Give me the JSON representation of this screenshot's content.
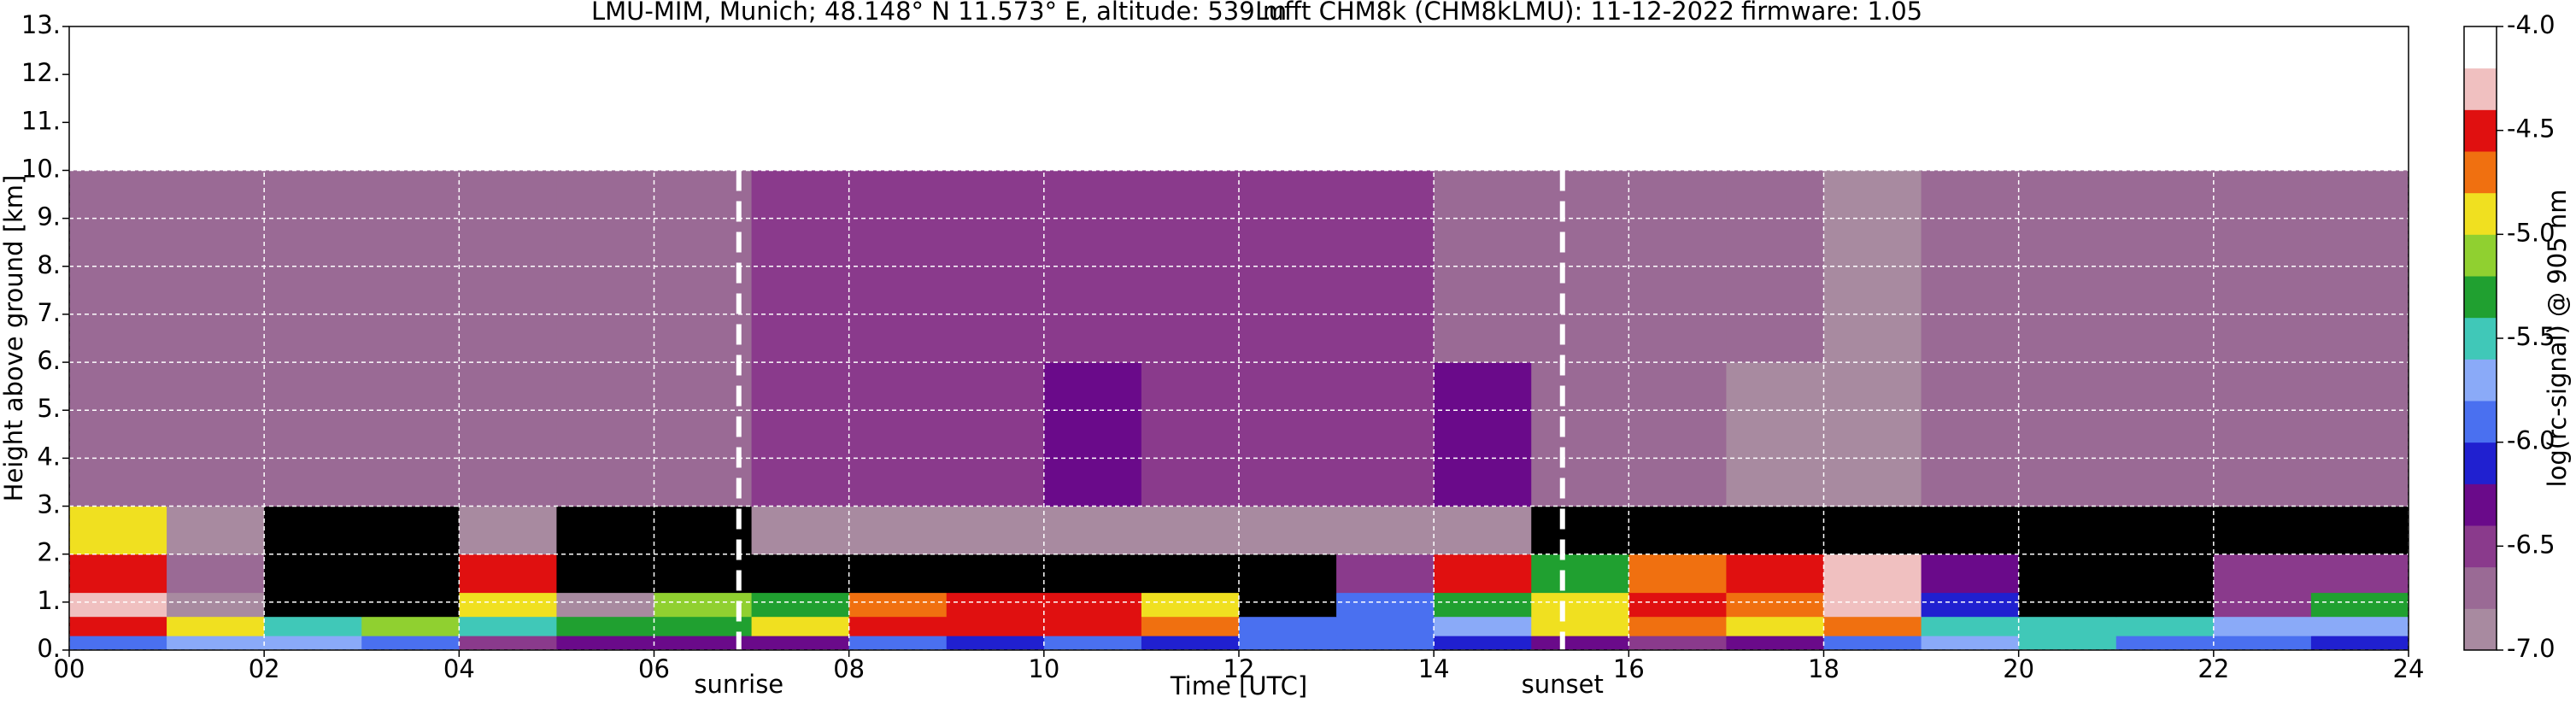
{
  "chart_data": {
    "type": "heatmap",
    "title_parts": [
      "LMU-MIM, Munich; 48.148° N 11.573° E, altitude: 539 m",
      "Lufft CHM8k (CHM8kLMU): 11-12-2022",
      "firmware: 1.05"
    ],
    "x_label": "Time [UTC]",
    "y_label": "Height above ground [km]",
    "xlim": [
      0,
      24
    ],
    "xticks": [
      {
        "value": 0,
        "label": "00"
      },
      {
        "value": 2,
        "label": "02"
      },
      {
        "value": 4,
        "label": "04"
      },
      {
        "value": 6,
        "label": "06"
      },
      {
        "value": 8,
        "label": "08"
      },
      10,
      12,
      14,
      16,
      18,
      20,
      22,
      24
    ],
    "ylim": [
      0,
      13
    ],
    "yticks": [
      {
        "value": 0,
        "label": "0."
      },
      {
        "value": 1,
        "label": "1."
      },
      {
        "value": 2,
        "label": "2."
      },
      {
        "value": 3,
        "label": "3."
      },
      {
        "value": 4,
        "label": "4."
      },
      {
        "value": 5,
        "label": "5."
      },
      {
        "value": 6,
        "label": "6."
      },
      {
        "value": 7,
        "label": "7."
      },
      {
        "value": 8,
        "label": "8."
      },
      {
        "value": 9,
        "label": "9."
      },
      {
        "value": 10,
        "label": "10."
      },
      {
        "value": 11,
        "label": "11."
      },
      {
        "value": 12,
        "label": "12."
      },
      {
        "value": 13,
        "label": "13."
      }
    ],
    "grid": true,
    "grid_color": "#ffffff",
    "annotations": [
      {
        "label": "sunrise",
        "x": 6.87
      },
      {
        "label": "sunset",
        "x": 15.32
      }
    ],
    "x_edges": [
      0,
      1,
      2,
      3,
      4,
      5,
      6,
      7,
      8,
      9,
      10,
      11,
      12,
      13,
      14,
      15,
      16,
      17,
      18,
      19,
      20,
      21,
      22,
      23,
      24
    ],
    "y_edges": [
      0,
      0.3,
      0.7,
      1.2,
      2,
      3,
      6,
      10
    ],
    "z": [
      [
        -5.9,
        -5.8,
        -5.8,
        -6.0,
        -6.4,
        -6.3,
        -6.2,
        -6.3,
        -6.0,
        -6.1,
        -6.0,
        -6.1,
        -6.0,
        -6.0,
        -6.1,
        -6.3,
        -6.4,
        -6.3,
        -6.0,
        -5.8,
        -5.6,
        -5.9,
        -6.0,
        -6.1
      ],
      [
        -4.6,
        -5.0,
        -5.4,
        -5.1,
        -5.5,
        -5.3,
        -5.2,
        -5.0,
        -4.5,
        -4.4,
        -4.5,
        -4.7,
        -5.9,
        -6.0,
        -5.8,
        -5.0,
        -4.8,
        -4.9,
        -4.7,
        -5.4,
        -5.6,
        -5.5,
        -5.8,
        -5.7
      ],
      [
        -4.3,
        -6.9,
        -7.1,
        -7.2,
        -5.0,
        -6.9,
        -5.1,
        -5.2,
        -4.8,
        -4.4,
        -4.5,
        -4.9,
        -7.1,
        -5.9,
        -5.3,
        -4.9,
        -4.6,
        -4.7,
        -4.3,
        -6.1,
        -7.1,
        -7.1,
        -6.5,
        -5.3
      ],
      [
        -4.4,
        -6.8,
        -7.2,
        -7.2,
        -4.6,
        -7.2,
        -7.2,
        -7.2,
        -7.2,
        -7.2,
        -7.2,
        -7.2,
        -7.2,
        -6.4,
        -4.4,
        -5.2,
        -4.8,
        -4.6,
        -4.3,
        -6.2,
        -7.2,
        -7.2,
        -6.4,
        -6.6
      ],
      [
        -4.9,
        -6.9,
        -7.1,
        -7.1,
        -6.9,
        -7.1,
        -7.1,
        -7.0,
        -6.9,
        -6.9,
        -6.9,
        -6.9,
        -6.9,
        -7.0,
        -7.0,
        -7.1,
        -7.2,
        -7.2,
        -7.2,
        -7.2,
        -7.2,
        -7.2,
        -7.2,
        -7.2
      ],
      [
        -6.7,
        -6.7,
        -6.7,
        -6.7,
        -6.7,
        -6.7,
        -6.7,
        -6.6,
        -6.6,
        -6.6,
        -6.3,
        -6.6,
        -6.6,
        -6.4,
        -6.2,
        -6.7,
        -6.8,
        -6.9,
        -6.9,
        -6.8,
        -6.8,
        -6.8,
        -6.8,
        -6.8
      ],
      [
        -6.7,
        -6.7,
        -6.7,
        -6.7,
        -6.7,
        -6.7,
        -6.7,
        -6.6,
        -6.6,
        -6.6,
        -6.6,
        -6.6,
        -6.6,
        -6.6,
        -6.7,
        -6.7,
        -6.8,
        -6.8,
        -6.9,
        -6.8,
        -6.8,
        -6.7,
        -6.7,
        -6.7
      ]
    ],
    "colorbar": {
      "label": "log(rc-signal) @ 905 nm",
      "lim": [
        -7,
        -4
      ],
      "ticks": [
        {
          "value": -7,
          "label": "-7.0"
        },
        {
          "value": -6.5,
          "label": "-6.5"
        },
        {
          "value": -6,
          "label": "-6.0"
        },
        {
          "value": -5.5,
          "label": "-5.5"
        },
        {
          "value": -5,
          "label": "-5.0"
        },
        {
          "value": -4.5,
          "label": "-4.5"
        },
        {
          "value": -4,
          "label": "-4.0"
        }
      ],
      "colors": [
        "#a88aa0",
        "#9a6a95",
        "#8a3a8c",
        "#6a0a8a",
        "#2020d0",
        "#4a70f0",
        "#8aaaf8",
        "#40c8b8",
        "#20a030",
        "#90d030",
        "#f0e020",
        "#f07010",
        "#e01010",
        "#f0c0c0",
        "#ffffff"
      ],
      "under_color": "#000000"
    }
  }
}
